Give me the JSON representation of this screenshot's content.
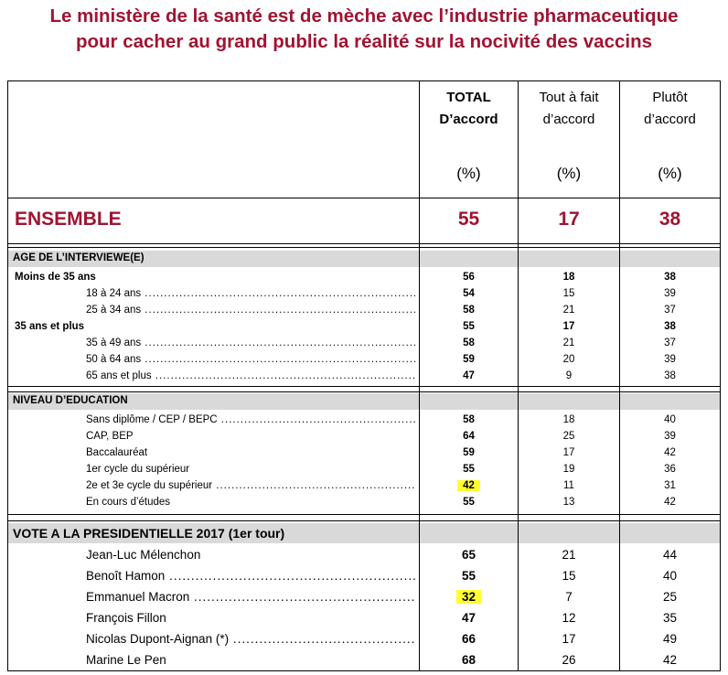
{
  "title_line1": "Le ministère de la santé est de mèche avec l’industrie pharmaceutique",
  "title_line2": "pour cacher au grand public la réalité sur la nocivité des vaccins",
  "columns": {
    "total_line1": "TOTAL",
    "total_line2": "D’accord",
    "tout_line1": "Tout à fait",
    "tout_line2": "d’accord",
    "plutot_line1": "Plutôt",
    "plutot_line2": "d’accord",
    "unit": "(%)"
  },
  "ensemble": {
    "label": "ENSEMBLE",
    "total": "55",
    "tout": "17",
    "plutot": "38"
  },
  "age": {
    "title": "AGE DE L’INTERVIEWE(E)",
    "rows": [
      {
        "label": "Moins de 35 ans",
        "total": "56",
        "tout": "18",
        "plutot": "38"
      },
      {
        "label": "18 à 24 ans",
        "total": "54",
        "tout": "15",
        "plutot": "39"
      },
      {
        "label": "25 à 34 ans",
        "total": "58",
        "tout": "21",
        "plutot": "37"
      },
      {
        "label": "35 ans et plus",
        "total": "55",
        "tout": "17",
        "plutot": "38"
      },
      {
        "label": "35 à 49 ans",
        "total": "58",
        "tout": "21",
        "plutot": "37"
      },
      {
        "label": "50 à 64 ans",
        "total": "59",
        "tout": "20",
        "plutot": "39"
      },
      {
        "label": "65 ans et plus",
        "total": "47",
        "tout": "9",
        "plutot": "38"
      }
    ]
  },
  "education": {
    "title": "NIVEAU D’EDUCATION",
    "rows": [
      {
        "label": "Sans diplôme / CEP / BEPC",
        "total": "58",
        "tout": "18",
        "plutot": "40"
      },
      {
        "label": "CAP, BEP",
        "total": "64",
        "tout": "25",
        "plutot": "39"
      },
      {
        "label": "Baccalauréat",
        "total": "59",
        "tout": "17",
        "plutot": "42"
      },
      {
        "label": "1er cycle du supérieur",
        "total": "55",
        "tout": "19",
        "plutot": "36"
      },
      {
        "label": "2e et 3e cycle du supérieur",
        "total": "42",
        "tout": "11",
        "plutot": "31"
      },
      {
        "label": "En cours d’études",
        "total": "55",
        "tout": "13",
        "plutot": "42"
      }
    ]
  },
  "vote": {
    "title": "VOTE A LA PRESIDENTIELLE 2017 (1er tour)",
    "rows": [
      {
        "label": "Jean-Luc Mélenchon",
        "total": "65",
        "tout": "21",
        "plutot": "44"
      },
      {
        "label": "Benoît Hamon",
        "total": "55",
        "tout": "15",
        "plutot": "40"
      },
      {
        "label": "Emmanuel Macron",
        "total": "32",
        "tout": "7",
        "plutot": "25"
      },
      {
        "label": "François Fillon",
        "total": "47",
        "tout": "12",
        "plutot": "35"
      },
      {
        "label": "Nicolas Dupont-Aignan (*)",
        "total": "66",
        "tout": "17",
        "plutot": "49"
      },
      {
        "label": "Marine Le Pen",
        "total": "68",
        "tout": "26",
        "plutot": "42"
      }
    ]
  },
  "highlight_color": "#ffff33",
  "accent_color": "#a01432"
}
